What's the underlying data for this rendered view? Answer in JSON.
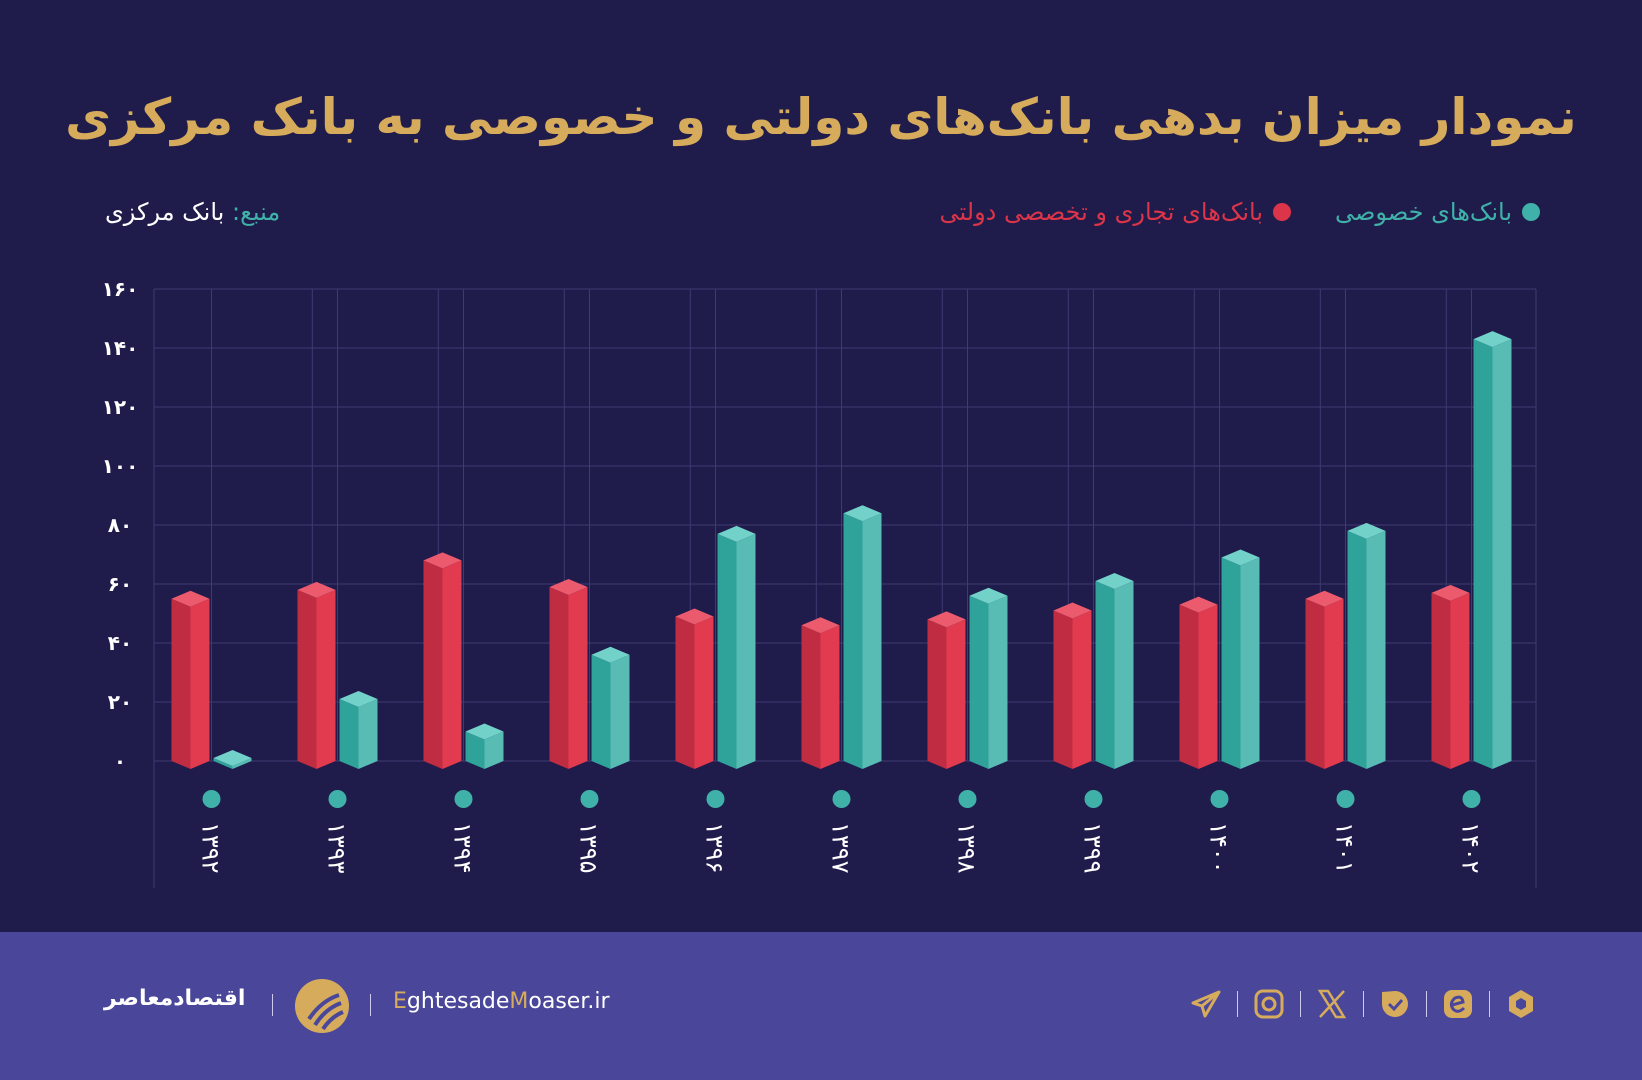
{
  "title": "نمودار میزان بدهی بانک‌های دولتی و خصوصی به بانک مرکزی",
  "source": {
    "label": "منبع:",
    "value": "بانک مرکزی"
  },
  "colors": {
    "private": "#3fb1a8",
    "state": "#dc3448",
    "title": "#d6ac5c",
    "background": "#1f1b4b",
    "footer": "#4a479b"
  },
  "chart_data": {
    "type": "bar",
    "title": "نمودار میزان بدهی بانک‌های دولتی و خصوصی به بانک مرکزی",
    "categories": [
      "۱۳۹۲",
      "۱۳۹۳",
      "۱۳۹۴",
      "۱۳۹۵",
      "۱۳۹۶",
      "۱۳۹۷",
      "۱۳۹۸",
      "۱۳۹۹",
      "۱۴۰۰",
      "۱۴۰۱",
      "۱۴۰۲"
    ],
    "series": [
      {
        "name": "بانک‌های تجاری و تخصصی دولتی",
        "color": "#dc3448",
        "values": [
          55,
          58,
          68,
          59,
          49,
          46,
          48,
          51,
          53,
          55,
          57
        ]
      },
      {
        "name": "بانک‌های خصوصی",
        "color": "#3fb1a8",
        "values": [
          1,
          21,
          10,
          36,
          77,
          84,
          56,
          61,
          69,
          78,
          143
        ]
      }
    ],
    "yticks": [
      "۰",
      "۲۰",
      "۴۰",
      "۶۰",
      "۸۰",
      "۱۰۰",
      "۱۲۰",
      "۱۴۰",
      "۱۶۰"
    ],
    "ylim": [
      0,
      160
    ],
    "grid": true,
    "legend_position": "top-right"
  },
  "footer": {
    "brand": "اقتصادمعاصر",
    "site_prefix1": "E",
    "site_mid1": "ghtesade",
    "site_prefix2": "M",
    "site_mid2": "oaser.ir",
    "social": [
      "telegram-icon",
      "instagram-icon",
      "x-icon",
      "bale-icon",
      "eitaa-icon",
      "rubika-icon"
    ]
  }
}
